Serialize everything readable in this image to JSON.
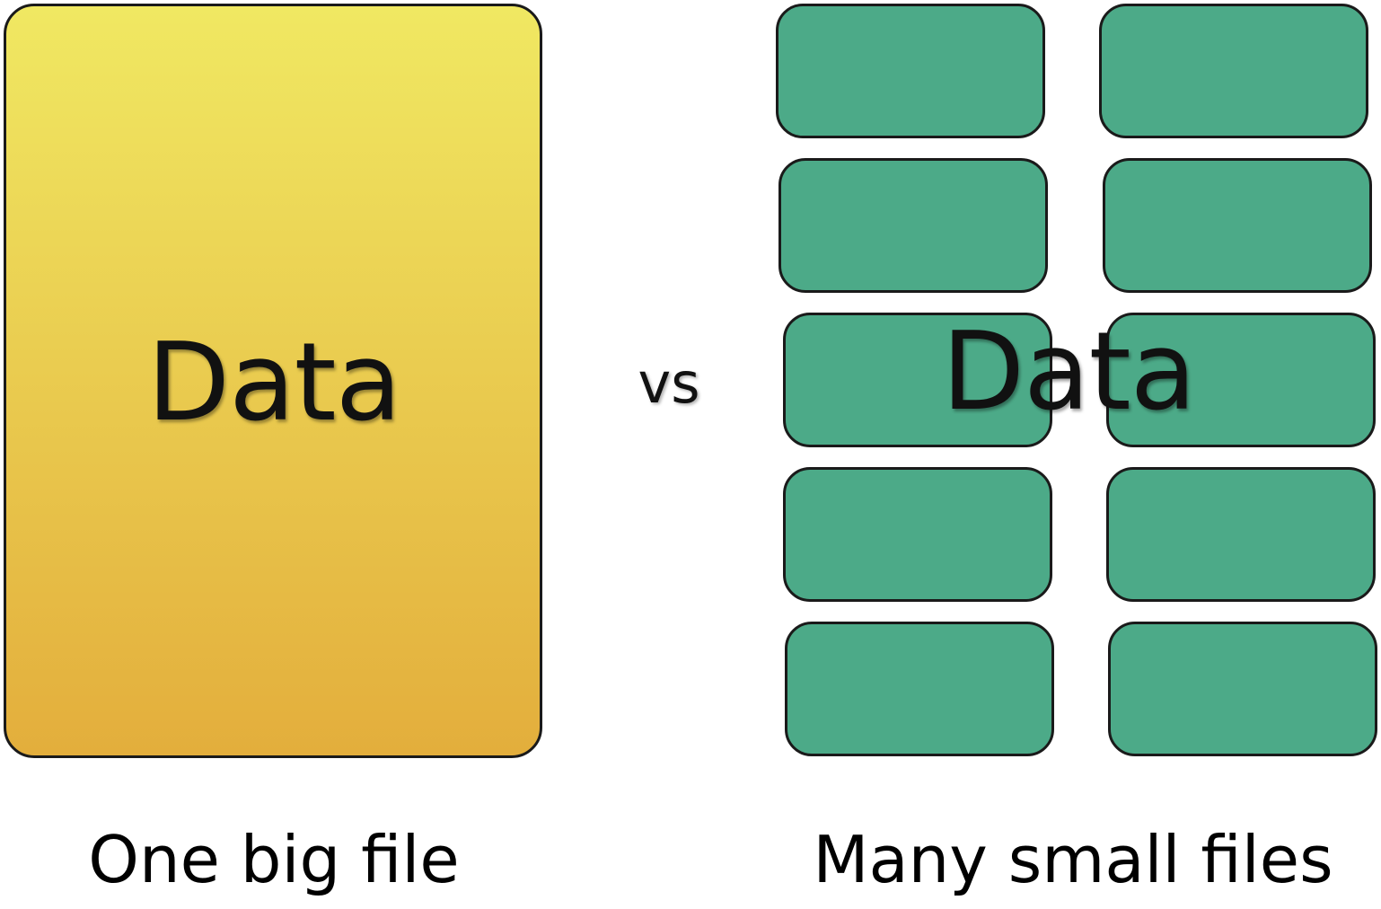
{
  "left": {
    "box_label": "Data",
    "caption": "One big file",
    "fill_colors": [
      "#f0e862",
      "#e3ae3c"
    ]
  },
  "separator": "vs",
  "right": {
    "box_label": "Data",
    "caption": "Many small files",
    "block_count": 10,
    "fill_color": "#4caa88"
  }
}
